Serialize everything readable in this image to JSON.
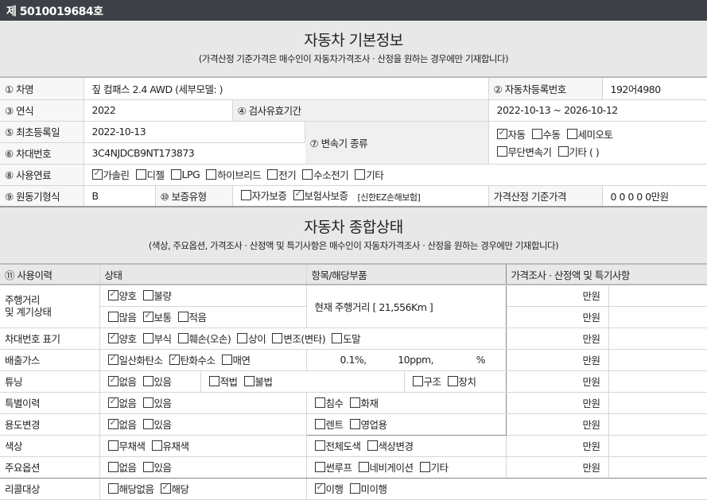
{
  "header": {
    "doc_number": "제 5010019684호"
  },
  "basic": {
    "title": "자동차 기본정보",
    "subtitle": "(가격산정 기준가격은 매수인이 자동차가격조사 · 산정을 원하는 경우에만 기재합니다)",
    "car_name_label": "① 차명",
    "car_name": "짚 컴패스 2.4 AWD (세부모델: )",
    "reg_no_label": "② 자동차등록번호",
    "reg_no": "192어4980",
    "year_label": "③ 연식",
    "year": "2022",
    "inspection_label": "④ 검사유효기간",
    "inspection": "2022-10-13 ~ 2026-10-12",
    "first_reg_label": "⑤ 최초등록일",
    "first_reg": "2022-10-13",
    "vin_label": "⑥ 차대번호",
    "vin": "3C4NJDCB9NT173873",
    "transmission_label": "⑦ 변속기 종류",
    "transmission_row1": [
      {
        "label": "자동",
        "checked": true
      },
      {
        "label": "수동",
        "checked": false
      },
      {
        "label": "세미오토",
        "checked": false
      }
    ],
    "transmission_row2": [
      {
        "label": "무단변속기",
        "checked": false
      },
      {
        "label": "기타 (       )",
        "checked": false
      }
    ],
    "fuel_label": "⑧ 사용연료",
    "fuel": [
      {
        "label": "가솔린",
        "checked": true
      },
      {
        "label": "디젤",
        "checked": false
      },
      {
        "label": "LPG",
        "checked": false
      },
      {
        "label": "하이브리드",
        "checked": false
      },
      {
        "label": "전기",
        "checked": false
      },
      {
        "label": "수소전기",
        "checked": false
      },
      {
        "label": "기타",
        "checked": false
      }
    ],
    "engine_label": "⑨ 원동기형식",
    "engine": "B",
    "warranty_label": "⑩ 보증유형",
    "warranty": [
      {
        "label": "자가보증",
        "checked": false
      },
      {
        "label": "보험사보증",
        "checked": true
      }
    ],
    "insurer": "[신한EZ손해보험]",
    "price_label": "가격산정 기준가격",
    "price": "0 0 0 0 0만원"
  },
  "status": {
    "title": "자동차 종합상태",
    "subtitle": "(색상, 주요옵션, 가격조사 · 산정액 및 특기사항은 매수인이 자동차가격조사 · 산정을 원하는 경우에만 기재합니다)",
    "headers": [
      "⑪ 사용이력",
      "상태",
      "항목/해당부품",
      "가격조사 · 산정액 및 특기사항"
    ],
    "won": "만원",
    "mileage_label": "주행거리\n및 계기상태",
    "mileage_state1": [
      {
        "label": "양호",
        "checked": true
      },
      {
        "label": "불량",
        "checked": false
      }
    ],
    "mileage_state2": [
      {
        "label": "많음",
        "checked": false
      },
      {
        "label": "보통",
        "checked": true
      },
      {
        "label": "적음",
        "checked": false
      }
    ],
    "mileage_text": "현재 주행거리 [ 21,556Km ]",
    "vin_mark_label": "차대번호 표기",
    "vin_mark": [
      {
        "label": "양호",
        "checked": true
      },
      {
        "label": "부식",
        "checked": false
      },
      {
        "label": "훼손(오손)",
        "checked": false
      },
      {
        "label": "상이",
        "checked": false
      },
      {
        "label": "변조(변타)",
        "checked": false
      },
      {
        "label": "도말",
        "checked": false
      }
    ],
    "emission_label": "배출가스",
    "emission": [
      {
        "label": "일산화탄소",
        "checked": true
      },
      {
        "label": "탄화수소",
        "checked": true
      },
      {
        "label": "매연",
        "checked": false
      }
    ],
    "emission_values": [
      "0.1%,",
      "10ppm,",
      "%"
    ],
    "tuning_label": "튜닝",
    "tuning": [
      {
        "label": "없음",
        "checked": true
      },
      {
        "label": "있음",
        "checked": false
      }
    ],
    "tuning_legal": [
      {
        "label": "적법",
        "checked": false
      },
      {
        "label": "불법",
        "checked": false
      }
    ],
    "tuning_type": [
      {
        "label": "구조",
        "checked": false
      },
      {
        "label": "장치",
        "checked": false
      }
    ],
    "special_label": "특별이력",
    "special": [
      {
        "label": "없음",
        "checked": true
      },
      {
        "label": "있음",
        "checked": false
      }
    ],
    "special_items": [
      {
        "label": "침수",
        "checked": false
      },
      {
        "label": "화재",
        "checked": false
      }
    ],
    "usage_label": "용도변경",
    "usage": [
      {
        "label": "없음",
        "checked": true
      },
      {
        "label": "있음",
        "checked": false
      }
    ],
    "usage_items": [
      {
        "label": "렌트",
        "checked": false
      },
      {
        "label": "영업용",
        "checked": false
      }
    ],
    "color_label": "색상",
    "color": [
      {
        "label": "무채색",
        "checked": false
      },
      {
        "label": "유채색",
        "checked": false
      }
    ],
    "color_items": [
      {
        "label": "전체도색",
        "checked": false
      },
      {
        "label": "색상변경",
        "checked": false
      }
    ],
    "options_label": "주요옵션",
    "options": [
      {
        "label": "없음",
        "checked": false
      },
      {
        "label": "있음",
        "checked": false
      }
    ],
    "options_items": [
      {
        "label": "썬루프",
        "checked": false
      },
      {
        "label": "네비게이션",
        "checked": false
      },
      {
        "label": "기타",
        "checked": false
      }
    ],
    "recall_label": "리콜대상",
    "recall": [
      {
        "label": "해당없음",
        "checked": false
      },
      {
        "label": "해당",
        "checked": true
      }
    ],
    "recall_items": [
      {
        "label": "이행",
        "checked": true
      },
      {
        "label": "미이행",
        "checked": false
      }
    ]
  }
}
